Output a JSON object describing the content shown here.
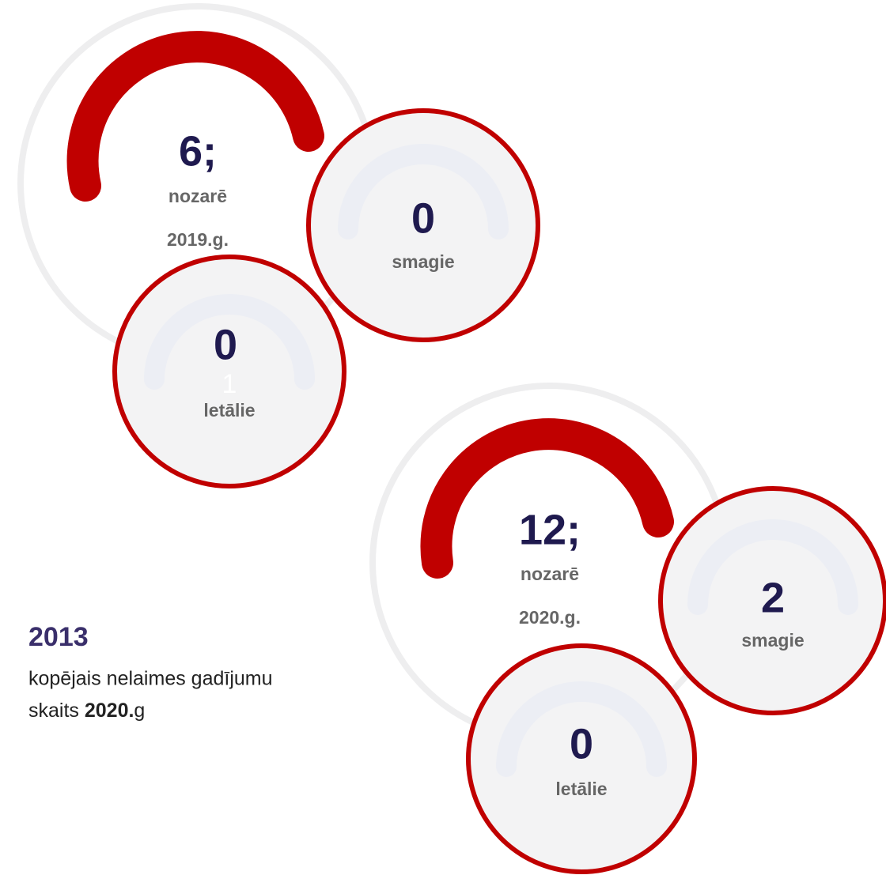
{
  "groups": [
    {
      "total": "6;",
      "label": "nozarē",
      "year": "2019.g.",
      "severe": {
        "value": "0",
        "label": "smagie"
      },
      "fatal": {
        "value": "0",
        "label": "letālie",
        "ghost": "1"
      }
    },
    {
      "total": "12;",
      "label": "nozarē",
      "year": "2020.g.",
      "severe": {
        "value": "2",
        "label": "smagie"
      },
      "fatal": {
        "value": "0",
        "label": "letālie"
      }
    }
  ],
  "summary": {
    "number": "2013",
    "line1": "kopējais nelaimes gadījumu",
    "line2_start": "skaits",
    "line2_bold": "2020.",
    "line2_end": "g"
  }
}
